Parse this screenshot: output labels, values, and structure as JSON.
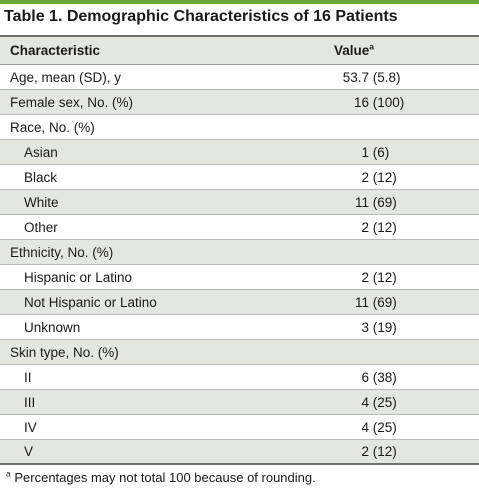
{
  "title": "Table 1. Demographic Characteristics of 16 Patients",
  "header": {
    "characteristic": "Characteristic",
    "value": "Value",
    "value_mark": "a"
  },
  "rows": [
    {
      "label": "Age, mean (SD), y",
      "num": "53.7",
      "paren": "(5.8)"
    },
    {
      "label": "Female sex, No. (%)",
      "num": "16",
      "paren": "(100)"
    },
    {
      "label": "Race, No. (%)",
      "num": "",
      "paren": ""
    },
    {
      "label": "Asian",
      "num": "1",
      "paren": "(6)"
    },
    {
      "label": "Black",
      "num": "2",
      "paren": "(12)"
    },
    {
      "label": "White",
      "num": "11",
      "paren": "(69)"
    },
    {
      "label": "Other",
      "num": "2",
      "paren": "(12)"
    },
    {
      "label": "Ethnicity, No. (%)",
      "num": "",
      "paren": ""
    },
    {
      "label": "Hispanic or Latino",
      "num": "2",
      "paren": "(12)"
    },
    {
      "label": "Not Hispanic or Latino",
      "num": "11",
      "paren": "(69)"
    },
    {
      "label": "Unknown",
      "num": "3",
      "paren": "(19)"
    },
    {
      "label": "Skin type, No. (%)",
      "num": "",
      "paren": ""
    },
    {
      "label": "II",
      "num": "6",
      "paren": "(38)"
    },
    {
      "label": "III",
      "num": "4",
      "paren": "(25)"
    },
    {
      "label": "IV",
      "num": "4",
      "paren": "(25)"
    },
    {
      "label": "V",
      "num": "2",
      "paren": "(12)"
    }
  ],
  "footnote": {
    "mark": "a",
    "text": "Percentages may not total 100 because of rounding."
  }
}
